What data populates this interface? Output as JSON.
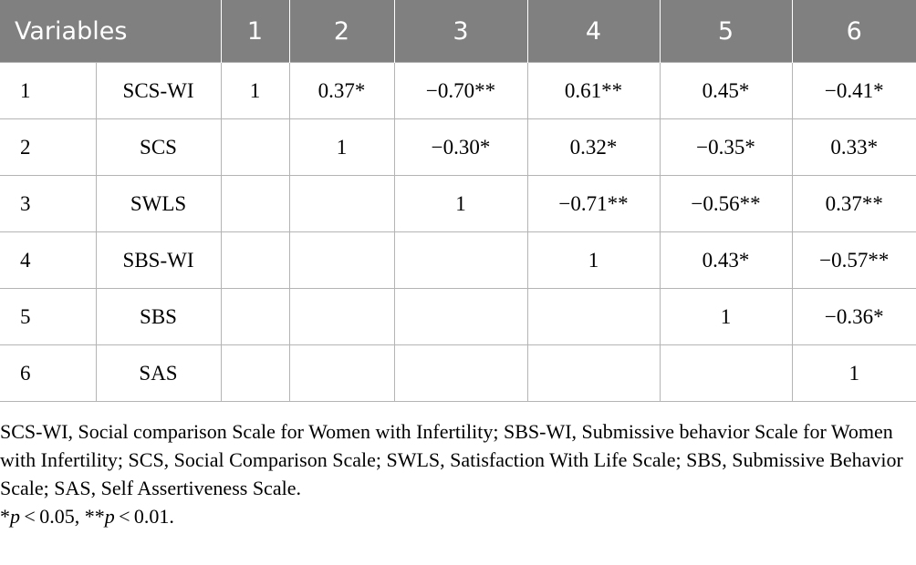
{
  "table": {
    "header": [
      "Variables",
      "1",
      "2",
      "3",
      "4",
      "5",
      "6"
    ],
    "rows": [
      {
        "num": "1",
        "name": "SCS-WI",
        "cells": [
          "1",
          "0.37*",
          "−0.70**",
          "0.61**",
          "0.45*",
          "−0.41*"
        ]
      },
      {
        "num": "2",
        "name": "SCS",
        "cells": [
          "",
          "1",
          "−0.30*",
          "0.32*",
          "−0.35*",
          "0.33*"
        ]
      },
      {
        "num": "3",
        "name": "SWLS",
        "cells": [
          "",
          "",
          "1",
          "−0.71**",
          "−0.56**",
          "0.37**"
        ]
      },
      {
        "num": "4",
        "name": "SBS-WI",
        "cells": [
          "",
          "",
          "",
          "1",
          "0.43*",
          "−0.57**"
        ]
      },
      {
        "num": "5",
        "name": "SBS",
        "cells": [
          "",
          "",
          "",
          "",
          "1",
          "−0.36*"
        ]
      },
      {
        "num": "6",
        "name": "SAS",
        "cells": [
          "",
          "",
          "",
          "",
          "",
          "1"
        ]
      }
    ]
  },
  "footnote": {
    "abbreviations": "SCS-WI, Social comparison Scale for Women with Infertility; SBS-WI, Submissive behavior Scale for Women with Infertility; SCS, Social Comparison Scale; SWLS, Satisfaction With Life Scale; SBS, Submissive Behavior Scale; SAS, Self Assertiveness Scale.",
    "sig_1_prefix": "*",
    "sig_1_p": "p",
    "sig_1_rest": " < 0.05, **",
    "sig_2_p": "p",
    "sig_2_rest": " < 0.01."
  }
}
